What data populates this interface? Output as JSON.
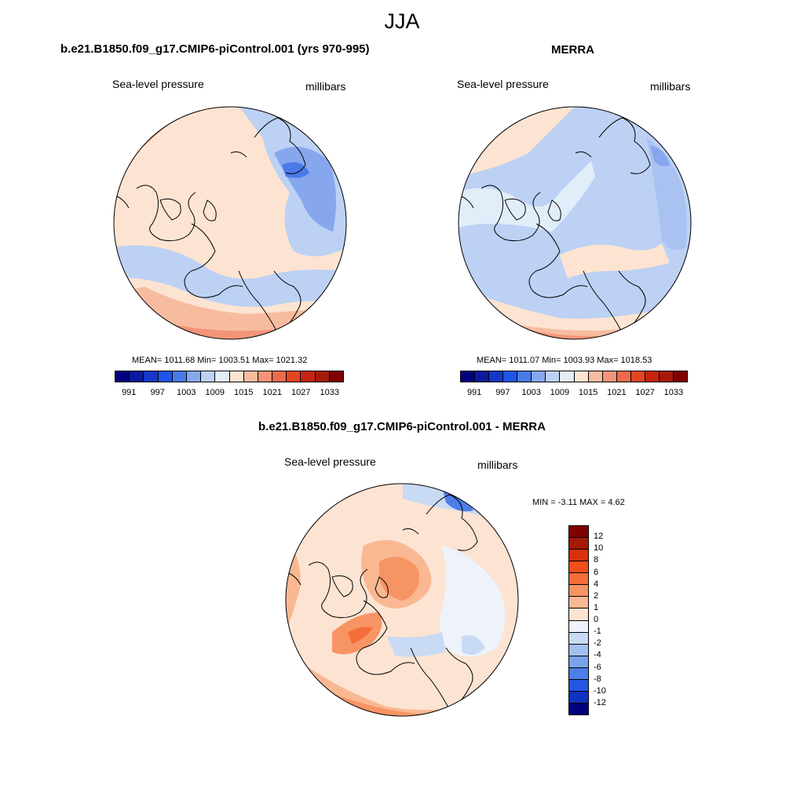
{
  "title": "JJA",
  "panels": [
    {
      "id": "model",
      "title": "b.e21.B1850.f09_g17.CMIP6-piControl.001 (yrs 970-995)",
      "left_label": "Sea-level pressure",
      "right_label": "millibars",
      "stats": "MEAN= 1011.68  Min= 1003.51  Max= 1021.32"
    },
    {
      "id": "obs",
      "title": "MERRA",
      "left_label": "Sea-level pressure",
      "right_label": "millibars",
      "stats": "MEAN= 1011.07  Min= 1003.93  Max= 1018.53"
    },
    {
      "id": "diff",
      "title": "b.e21.B1850.f09_g17.CMIP6-piControl.001 - MERRA",
      "left_label": "Sea-level pressure",
      "right_label": "millibars",
      "stats": "MIN =  -3.11 MAX =   4.62"
    }
  ],
  "abs_colorbar": {
    "colors": [
      "#00007f",
      "#0a1a9e",
      "#1437c8",
      "#1f55e6",
      "#4a7ae8",
      "#86a7ee",
      "#bcd1f4",
      "#e2edfa",
      "#fde4d2",
      "#f7bca0",
      "#f39479",
      "#ee6a4c",
      "#e34520",
      "#c52410",
      "#a51908",
      "#7f0000"
    ],
    "labels": [
      "991",
      "997",
      "1003",
      "1009",
      "1015",
      "1021",
      "1027",
      "1033"
    ]
  },
  "diff_colorbar": {
    "colors": [
      "#7f0000",
      "#a51908",
      "#d9300f",
      "#f04e1b",
      "#f56e3a",
      "#f79464",
      "#f9b892",
      "#fde3d2",
      "#eef3fb",
      "#c8daf4",
      "#a3c1f0",
      "#7aa3ec",
      "#4e7ee8",
      "#2556e4",
      "#0f33c0",
      "#00007f"
    ],
    "labels": [
      "12",
      "10",
      "8",
      "6",
      "4",
      "2",
      "1",
      "0",
      "-1",
      "-2",
      "-4",
      "-6",
      "-8",
      "-10",
      "-12"
    ]
  },
  "chart_data": [
    {
      "type": "heatmap",
      "title": "b.e21.B1850.f09_g17.CMIP6-piControl.001 (yrs 970-995)",
      "variable": "Sea-level pressure",
      "units": "millibars",
      "projection": "polar stereographic (north pole)",
      "mean": 1011.68,
      "min": 1003.51,
      "max": 1021.32,
      "levels": [
        991,
        994,
        997,
        1000,
        1003,
        1006,
        1009,
        1012,
        1015,
        1018,
        1021,
        1024,
        1027,
        1030,
        1033
      ]
    },
    {
      "type": "heatmap",
      "title": "MERRA",
      "variable": "Sea-level pressure",
      "units": "millibars",
      "projection": "polar stereographic (north pole)",
      "mean": 1011.07,
      "min": 1003.93,
      "max": 1018.53,
      "levels": [
        991,
        994,
        997,
        1000,
        1003,
        1006,
        1009,
        1012,
        1015,
        1018,
        1021,
        1024,
        1027,
        1030,
        1033
      ]
    },
    {
      "type": "heatmap",
      "title": "b.e21.B1850.f09_g17.CMIP6-piControl.001 - MERRA",
      "variable": "Sea-level pressure",
      "units": "millibars",
      "projection": "polar stereographic (north pole)",
      "min": -3.11,
      "max": 4.62,
      "levels": [
        -12,
        -10,
        -8,
        -6,
        -4,
        -2,
        -1,
        0,
        1,
        2,
        4,
        6,
        8,
        10,
        12
      ]
    }
  ]
}
